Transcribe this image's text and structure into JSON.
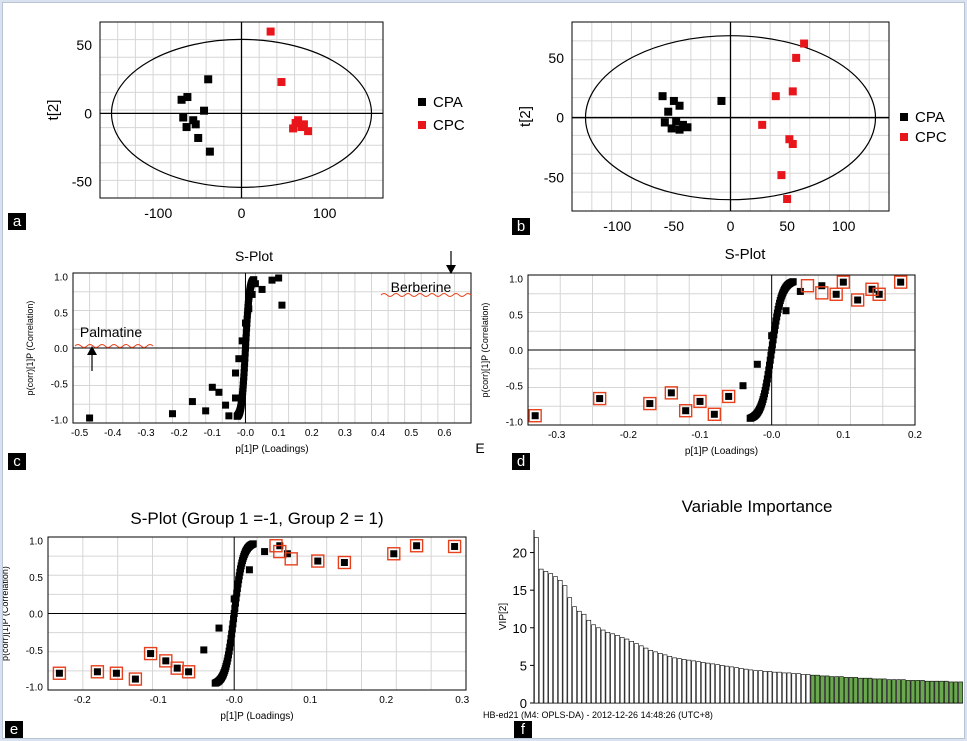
{
  "colors": {
    "cpa": "#000000",
    "cpc": "#e8151b",
    "highlight": "#e8401c",
    "vip_green": "#6aa84f",
    "grid": "#d6d6d6"
  },
  "panels": {
    "a": {
      "label": "a",
      "ylabel": "t[2]",
      "xlim": [
        -170,
        170
      ],
      "ylim": [
        -62,
        67
      ],
      "xticks": [
        "-100",
        "0",
        "100"
      ],
      "yticks": [
        "50",
        "0",
        "-50"
      ],
      "legend": [
        "CPA",
        "CPC"
      ]
    },
    "b": {
      "label": "b",
      "ylabel": "t[2]",
      "xlim": [
        -140,
        140
      ],
      "ylim": [
        -78,
        80
      ],
      "xticks": [
        "-100",
        "-50",
        "0",
        "50",
        "100"
      ],
      "yticks": [
        "50",
        "0",
        "-50"
      ],
      "legend": [
        "CPA",
        "CPC"
      ],
      "footer": "S-Plot"
    },
    "c": {
      "label": "c",
      "title": "S-Plot",
      "xlabel": "p[1]P (Loadings)",
      "ylabel": "p(corr)[1]P (Correlation)",
      "xticks": [
        "-0.5",
        "-0.4",
        "-0.3",
        "-0.2",
        "-0.1",
        "-0.0",
        "0.1",
        "0.2",
        "0.3",
        "0.4",
        "0.5",
        "0.6"
      ],
      "yticks": [
        "1.0",
        "0.5",
        "0.0",
        "-0.5",
        "-1.0"
      ],
      "annotation_right": "Berberine",
      "annotation_left": "Palmatine",
      "stray_letter": "E"
    },
    "d": {
      "label": "d",
      "xlabel": "p[1]P (Loadings)",
      "ylabel": "p(corr)[1]P (Correlation)",
      "xticks": [
        "-0.3",
        "-0.2",
        "-0.1",
        "-0.0",
        "0.1",
        "0.2"
      ],
      "yticks": [
        "1.0",
        "0.5",
        "0.0",
        "-0.5",
        "-1.0"
      ]
    },
    "e": {
      "label": "e",
      "title": "S-Plot (Group 1 =-1, Group 2 = 1)",
      "xlabel": "p[1]P (Loadings)",
      "ylabel": "p(corr)[1]P (Correlation)",
      "xticks": [
        "-0.2",
        "-0.1",
        "-0.0",
        "0.1",
        "0.2",
        "0.3"
      ],
      "yticks": [
        "1.0",
        "0.5",
        "0.0",
        "-0.5",
        "-1.0"
      ]
    },
    "f": {
      "label": "f",
      "title": "Variable Importance",
      "ylabel": "VIP[2]",
      "yticks": [
        "20",
        "15",
        "10",
        "5",
        "0"
      ],
      "footer": "HB-ed21 (M4: OPLS-DA) - 2012-12-26 14:48:26 (UTC+8)"
    }
  },
  "chart_data": [
    {
      "type": "scatter",
      "panel": "a",
      "series": [
        {
          "name": "CPA",
          "points": [
            [
              -40,
              25
            ],
            [
              -72,
              10
            ],
            [
              -65,
              12
            ],
            [
              -70,
              -3
            ],
            [
              -58,
              -5
            ],
            [
              -66,
              -10
            ],
            [
              -55,
              -8
            ],
            [
              -52,
              -18
            ],
            [
              -38,
              -28
            ],
            [
              -45,
              2
            ]
          ]
        },
        {
          "name": "CPC",
          "points": [
            [
              35,
              60
            ],
            [
              48,
              23
            ],
            [
              65,
              -7
            ],
            [
              72,
              -10
            ],
            [
              80,
              -13
            ],
            [
              68,
              -5
            ],
            [
              62,
              -11
            ],
            [
              75,
              -8
            ]
          ]
        }
      ],
      "xlim": [
        -170,
        170
      ],
      "ylim": [
        -62,
        67
      ],
      "ellipse": true
    },
    {
      "type": "scatter",
      "panel": "b",
      "series": [
        {
          "name": "CPA",
          "points": [
            [
              -60,
              18
            ],
            [
              -50,
              14
            ],
            [
              -45,
              10
            ],
            [
              -8,
              14
            ],
            [
              -55,
              5
            ],
            [
              -48,
              -3
            ],
            [
              -42,
              -6
            ],
            [
              -38,
              -8
            ],
            [
              -52,
              -9
            ],
            [
              -58,
              -4
            ],
            [
              -45,
              -10
            ]
          ]
        },
        {
          "name": "CPC",
          "points": [
            [
              65,
              62
            ],
            [
              58,
              50
            ],
            [
              55,
              22
            ],
            [
              40,
              18
            ],
            [
              28,
              -6
            ],
            [
              52,
              -18
            ],
            [
              55,
              -22
            ],
            [
              45,
              -48
            ],
            [
              50,
              -68
            ]
          ]
        }
      ],
      "xlim": [
        -140,
        140
      ],
      "ylim": [
        -78,
        80
      ],
      "ellipse": true
    },
    {
      "type": "scatter",
      "panel": "c",
      "title": "S-Plot",
      "xlabel": "p[1]P (Loadings)",
      "ylabel": "p(corr)[1]P (Correlation)",
      "xlim": [
        -0.52,
        0.68
      ],
      "ylim": [
        -1.05,
        1.05
      ],
      "points": [
        [
          -0.47,
          -0.98
        ],
        [
          -0.22,
          -0.92
        ],
        [
          -0.16,
          -0.75
        ],
        [
          -0.12,
          -0.88
        ],
        [
          -0.1,
          -0.55
        ],
        [
          -0.08,
          -0.62
        ],
        [
          -0.06,
          -0.8
        ],
        [
          -0.05,
          -0.95
        ],
        [
          -0.03,
          -0.7
        ],
        [
          -0.03,
          -0.35
        ],
        [
          -0.02,
          -0.15
        ],
        [
          -0.01,
          0.1
        ],
        [
          0.0,
          0.35
        ],
        [
          0.01,
          0.55
        ],
        [
          0.02,
          0.75
        ],
        [
          0.03,
          0.9
        ],
        [
          0.05,
          0.82
        ],
        [
          0.08,
          0.95
        ],
        [
          0.1,
          0.98
        ],
        [
          0.11,
          0.6
        ]
      ]
    },
    {
      "type": "scatter",
      "panel": "d",
      "xlabel": "p[1]P (Loadings)",
      "ylabel": "p(corr)[1]P (Correlation)",
      "xlim": [
        -0.34,
        0.2
      ],
      "ylim": [
        -1.05,
        1.05
      ],
      "points": [
        [
          -0.33,
          -0.92
        ],
        [
          -0.24,
          -0.68
        ],
        [
          -0.17,
          -0.75
        ],
        [
          -0.14,
          -0.6
        ],
        [
          -0.12,
          -0.85
        ],
        [
          -0.1,
          -0.72
        ],
        [
          -0.08,
          -0.9
        ],
        [
          -0.06,
          -0.65
        ],
        [
          -0.04,
          -0.5
        ],
        [
          -0.02,
          -0.2
        ],
        [
          0.0,
          0.2
        ],
        [
          0.02,
          0.55
        ],
        [
          0.04,
          0.82
        ],
        [
          0.07,
          0.9
        ],
        [
          0.09,
          0.78
        ],
        [
          0.1,
          0.95
        ],
        [
          0.12,
          0.7
        ],
        [
          0.14,
          0.85
        ],
        [
          0.15,
          0.78
        ],
        [
          0.18,
          0.95
        ]
      ],
      "highlighted": [
        [
          -0.33,
          -0.92
        ],
        [
          -0.24,
          -0.68
        ],
        [
          -0.17,
          -0.75
        ],
        [
          -0.14,
          -0.6
        ],
        [
          -0.12,
          -0.85
        ],
        [
          -0.1,
          -0.72
        ],
        [
          -0.08,
          -0.9
        ],
        [
          -0.06,
          -0.65
        ],
        [
          0.05,
          0.9
        ],
        [
          0.07,
          0.8
        ],
        [
          0.09,
          0.78
        ],
        [
          0.1,
          0.95
        ],
        [
          0.12,
          0.7
        ],
        [
          0.14,
          0.85
        ],
        [
          0.15,
          0.78
        ],
        [
          0.18,
          0.95
        ]
      ]
    },
    {
      "type": "scatter",
      "panel": "e",
      "title": "S-Plot (Group 1 =-1, Group 2 = 1)",
      "xlabel": "p[1]P (Loadings)",
      "ylabel": "p(corr)[1]P (Correlation)",
      "xlim": [
        -0.245,
        0.305
      ],
      "ylim": [
        -1.05,
        1.05
      ],
      "points": [
        [
          -0.23,
          -0.82
        ],
        [
          -0.18,
          -0.8
        ],
        [
          -0.155,
          -0.82
        ],
        [
          -0.13,
          -0.9
        ],
        [
          -0.11,
          -0.55
        ],
        [
          -0.09,
          -0.65
        ],
        [
          -0.075,
          -0.75
        ],
        [
          -0.06,
          -0.8
        ],
        [
          -0.04,
          -0.5
        ],
        [
          -0.02,
          -0.2
        ],
        [
          0.0,
          0.2
        ],
        [
          0.02,
          0.6
        ],
        [
          0.04,
          0.85
        ],
        [
          0.06,
          0.93
        ],
        [
          0.07,
          0.82
        ],
        [
          0.11,
          0.72
        ],
        [
          0.145,
          0.7
        ],
        [
          0.21,
          0.82
        ],
        [
          0.24,
          0.93
        ],
        [
          0.29,
          0.92
        ]
      ],
      "highlighted": [
        [
          -0.23,
          -0.82
        ],
        [
          -0.18,
          -0.8
        ],
        [
          -0.155,
          -0.82
        ],
        [
          -0.13,
          -0.9
        ],
        [
          -0.11,
          -0.55
        ],
        [
          -0.09,
          -0.65
        ],
        [
          -0.075,
          -0.75
        ],
        [
          -0.06,
          -0.8
        ],
        [
          0.055,
          0.93
        ],
        [
          0.06,
          0.85
        ],
        [
          0.075,
          0.75
        ],
        [
          0.11,
          0.72
        ],
        [
          0.145,
          0.7
        ],
        [
          0.21,
          0.82
        ],
        [
          0.24,
          0.93
        ],
        [
          0.29,
          0.92
        ]
      ]
    },
    {
      "type": "bar",
      "panel": "f",
      "title": "Variable Importance",
      "ylabel": "VIP[2]",
      "ylim": [
        0,
        23
      ],
      "values": [
        22,
        17.8,
        17.5,
        17.2,
        16.8,
        16.3,
        15.6,
        14,
        12.8,
        12.2,
        11.8,
        11,
        10.4,
        10,
        9.7,
        9.4,
        9.2,
        9,
        8.7,
        8.5,
        8.2,
        7.9,
        7.6,
        7.3,
        7,
        6.8,
        6.6,
        6.4,
        6.2,
        6,
        5.9,
        5.8,
        5.7,
        5.6,
        5.5,
        5.4,
        5.3,
        5.2,
        5.1,
        5,
        4.9,
        4.8,
        4.7,
        4.6,
        4.5,
        4.4,
        4.3,
        4.3,
        4.2,
        4.2,
        4.1,
        4.1,
        4,
        4,
        3.9,
        3.9,
        3.8,
        3.8,
        3.7,
        3.7,
        3.6,
        3.6,
        3.5,
        3.5,
        3.5,
        3.4,
        3.4,
        3.4,
        3.3,
        3.3,
        3.3,
        3.2,
        3.2,
        3.2,
        3.1,
        3.1,
        3.1,
        3.1,
        3,
        3,
        3,
        3,
        2.9,
        2.9,
        2.9,
        2.9,
        2.9,
        2.8,
        2.8,
        2.8
      ],
      "green_from": 58
    }
  ]
}
